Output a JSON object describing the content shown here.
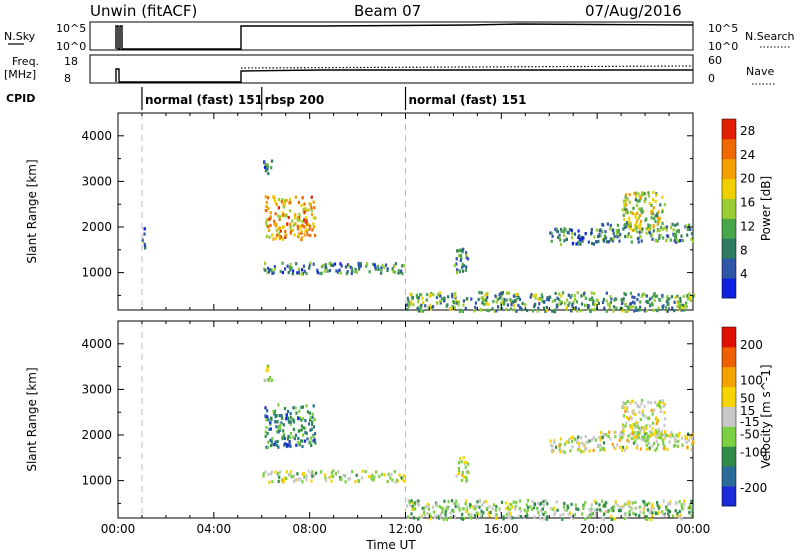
{
  "header": {
    "station": "Unwin (fitACF)",
    "beam": "Beam 07",
    "date": "07/Aug/2016"
  },
  "top_panels": {
    "nsky_label": "N.Sky",
    "nsearch_label": "N.Search",
    "freq_label_line1": "Freq.",
    "freq_label_line2": "[MHz]",
    "nave_label": "Nave",
    "cpid_label": "CPID",
    "nsky_ticks": [
      "10^5",
      "10^0"
    ],
    "nsearch_ticks": [
      "10^5",
      "10^0"
    ],
    "freq_ticks": [
      "18",
      "8"
    ],
    "nave_ticks": [
      "60",
      "0"
    ]
  },
  "cpid_segments": [
    {
      "label": "normal (fast) 151",
      "start_h": 1.0
    },
    {
      "label": "rbsp 200",
      "start_h": 6.0
    },
    {
      "label": "normal (fast) 151",
      "start_h": 12.0
    }
  ],
  "time_axis": {
    "xlabel": "Time UT",
    "ticks": [
      "00:00",
      "04:00",
      "08:00",
      "12:00",
      "16:00",
      "20:00",
      "00:00"
    ],
    "range_h": [
      0,
      24
    ]
  },
  "chart_data": [
    {
      "type": "heatmap",
      "title": "",
      "xlabel": "Time UT",
      "ylabel": "Slant Range [km]",
      "xlim_h": [
        0,
        24
      ],
      "ylim": [
        180,
        4500
      ],
      "yticks": [
        1000,
        2000,
        3000,
        4000
      ],
      "colorbar": {
        "label": "Power [dB]",
        "ticks": [
          "4",
          "8",
          "12",
          "16",
          "20",
          "24",
          "28"
        ],
        "range": [
          0,
          30
        ],
        "colors": [
          "#1020e0",
          "#2d55a8",
          "#2f7a62",
          "#48a54a",
          "#9acd32",
          "#f0d000",
          "#f3a000",
          "#ee6a00",
          "#e02000"
        ]
      },
      "regions": [
        {
          "t0": 0.95,
          "t1": 1.1,
          "r0": 1500,
          "r1": 2100,
          "mean": 8
        },
        {
          "t0": 6.05,
          "t1": 6.4,
          "r0": 3200,
          "r1": 3550,
          "mean": 8
        },
        {
          "t0": 6.1,
          "t1": 8.2,
          "r0": 1750,
          "r1": 2700,
          "mean": 21
        },
        {
          "t0": 6.0,
          "t1": 12.0,
          "r0": 1000,
          "r1": 1250,
          "mean": 9
        },
        {
          "t0": 12.0,
          "t1": 24.0,
          "r0": 180,
          "r1": 600,
          "mean": 11
        },
        {
          "t0": 14.0,
          "t1": 14.6,
          "r0": 1000,
          "r1": 1550,
          "mean": 10
        },
        {
          "t0": 18.0,
          "t1": 20.0,
          "r0": 1650,
          "r1": 2000,
          "mean": 8
        },
        {
          "t0": 20.0,
          "t1": 24.0,
          "r0": 1700,
          "r1": 2100,
          "mean": 10
        },
        {
          "t0": 21.0,
          "t1": 22.8,
          "r0": 1950,
          "r1": 2800,
          "mean": 16
        }
      ]
    },
    {
      "type": "heatmap",
      "title": "",
      "xlabel": "Time UT",
      "ylabel": "Slant Range [km]",
      "xlim_h": [
        0,
        24
      ],
      "ylim": [
        180,
        4500
      ],
      "yticks": [
        1000,
        2000,
        3000,
        4000
      ],
      "colorbar": {
        "label": "Velocity [m s^-1]",
        "ticks": [
          "200",
          "100",
          "50",
          "15",
          "-15",
          "-50",
          "-100",
          "-200"
        ],
        "range": [
          -250,
          250
        ],
        "colors": [
          "#1a2ad6",
          "#2a6b9a",
          "#2f8a4a",
          "#7ad040",
          "#c8c8c8",
          "#f5d400",
          "#f3a200",
          "#ee6000",
          "#e01000"
        ]
      },
      "regions": [
        {
          "t0": 6.05,
          "t1": 6.4,
          "r0": 3200,
          "r1": 3550,
          "mean": 0
        },
        {
          "t0": 6.1,
          "t1": 8.2,
          "r0": 1750,
          "r1": 2700,
          "mean": -120
        },
        {
          "t0": 6.0,
          "t1": 12.0,
          "r0": 1000,
          "r1": 1250,
          "mean": -25
        },
        {
          "t0": 12.0,
          "t1": 24.0,
          "r0": 180,
          "r1": 600,
          "mean": -40
        },
        {
          "t0": 14.0,
          "t1": 14.6,
          "r0": 1000,
          "r1": 1550,
          "mean": 0
        },
        {
          "t0": 18.0,
          "t1": 20.0,
          "r0": 1650,
          "r1": 2000,
          "mean": 0
        },
        {
          "t0": 20.0,
          "t1": 24.0,
          "r0": 1700,
          "r1": 2100,
          "mean": 0
        },
        {
          "t0": 21.0,
          "t1": 22.8,
          "r0": 1950,
          "r1": 2800,
          "mean": 5
        }
      ]
    }
  ]
}
